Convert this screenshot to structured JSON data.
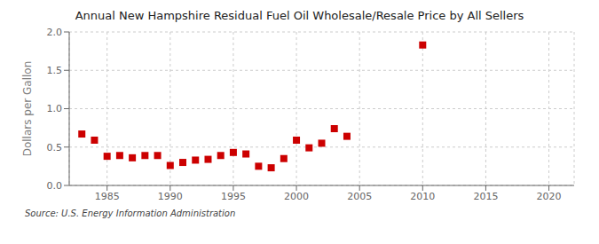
{
  "chart_data": {
    "type": "scatter",
    "title": "Annual New Hampshire Residual Fuel Oil Wholesale/Resale Price by All Sellers",
    "y_label": "Dollars per Gallon",
    "annotations": [
      "Source: U.S. Energy Information Administration"
    ],
    "x": [
      1983,
      1984,
      1985,
      1986,
      1987,
      1988,
      1989,
      1990,
      1991,
      1992,
      1993,
      1994,
      1995,
      1996,
      1997,
      1998,
      1999,
      2000,
      2001,
      2002,
      2003,
      2004,
      2010
    ],
    "values": [
      0.67,
      0.59,
      0.38,
      0.39,
      0.36,
      0.39,
      0.39,
      0.26,
      0.3,
      0.33,
      0.34,
      0.39,
      0.43,
      0.41,
      0.25,
      0.23,
      0.35,
      0.59,
      0.49,
      0.55,
      0.74,
      0.64,
      1.83
    ],
    "color": "#cc0000",
    "marker": "square",
    "xlim": [
      1982,
      2022
    ],
    "xticks": [
      1985,
      1990,
      1995,
      2000,
      2005,
      2010,
      2015,
      2020
    ],
    "ylim": [
      0.0,
      2.0
    ],
    "yticks": [
      {
        "value": 0,
        "label": "0.0"
      },
      0.5,
      {
        "value": 1,
        "label": "1.0"
      },
      1.5,
      {
        "value": 2,
        "label": "2.0"
      }
    ],
    "grid": true
  }
}
